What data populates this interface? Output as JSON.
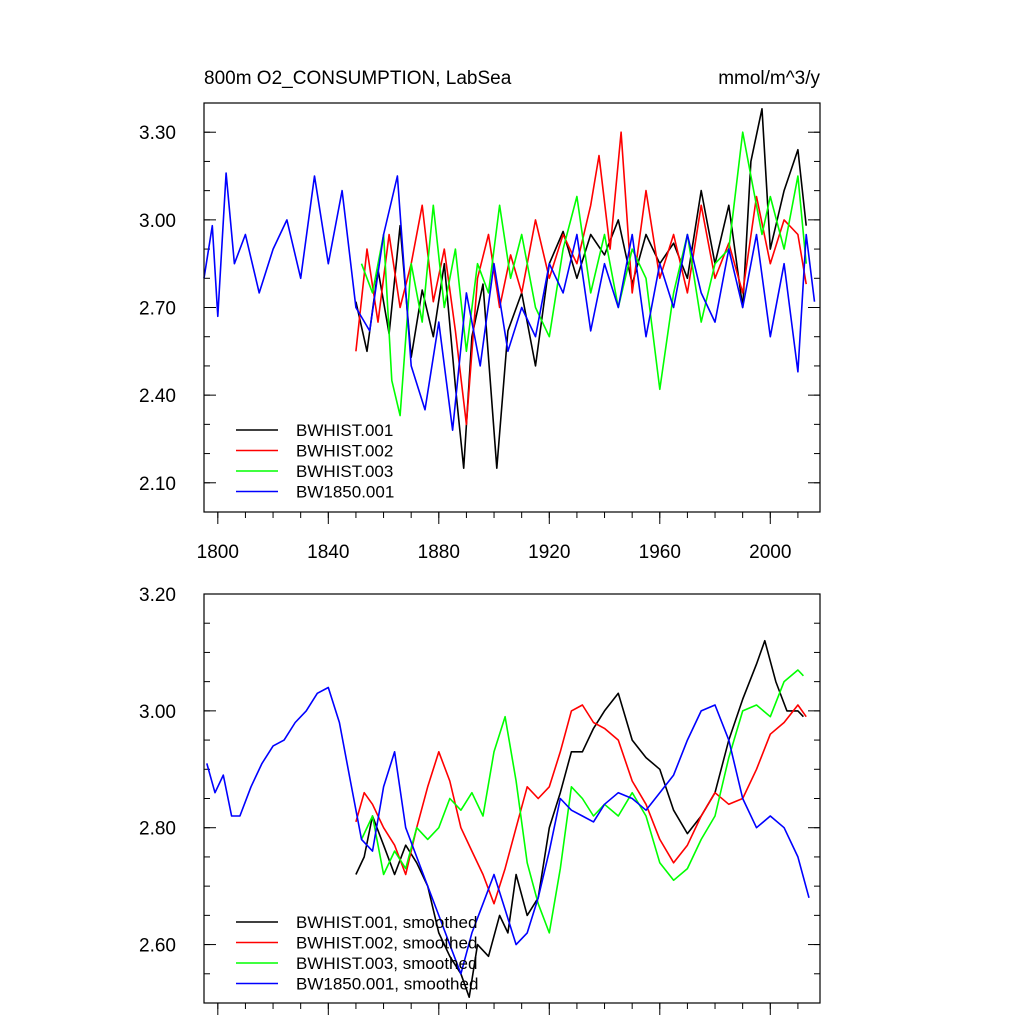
{
  "chart_data": [
    {
      "type": "line",
      "title": "800m O2_CONSUMPTION, LabSea",
      "units": "mmol/m^3/y",
      "xlabel": "",
      "ylabel": "",
      "xlim": [
        1795,
        2018
      ],
      "ylim": [
        2.0,
        3.4
      ],
      "x_ticks": [
        1800,
        1840,
        1880,
        1920,
        1960,
        2000
      ],
      "x_tick_labels": [
        "1800",
        "1840",
        "1880",
        "1920",
        "1960",
        "2000"
      ],
      "y_ticks": [
        2.1,
        2.4,
        2.7,
        3.0,
        3.3
      ],
      "y_tick_labels": [
        "2.10",
        "2.40",
        "2.70",
        "3.00",
        "3.30"
      ],
      "legend": "bottom-left",
      "series": [
        {
          "name": "BWHIST.001",
          "color": "#000000",
          "x": [
            1850,
            1854,
            1858,
            1862,
            1866,
            1870,
            1874,
            1878,
            1882,
            1886,
            1889,
            1892,
            1896,
            1901,
            1905,
            1910,
            1915,
            1920,
            1925,
            1930,
            1935,
            1940,
            1945,
            1950,
            1955,
            1960,
            1965,
            1970,
            1975,
            1980,
            1985,
            1990,
            1993,
            1997,
            2000,
            2005,
            2010,
            2013
          ],
          "y": [
            2.72,
            2.55,
            2.83,
            2.61,
            2.98,
            2.53,
            2.76,
            2.6,
            2.85,
            2.43,
            2.15,
            2.6,
            2.78,
            2.15,
            2.62,
            2.75,
            2.5,
            2.85,
            2.96,
            2.8,
            2.95,
            2.88,
            3.0,
            2.78,
            2.95,
            2.85,
            2.92,
            2.8,
            3.1,
            2.85,
            3.05,
            2.7,
            3.2,
            3.38,
            2.9,
            3.1,
            3.24,
            2.98
          ]
        },
        {
          "name": "BWHIST.002",
          "color": "#ff0000",
          "x": [
            1850,
            1854,
            1858,
            1862,
            1866,
            1870,
            1874,
            1878,
            1882,
            1886,
            1890,
            1894,
            1898,
            1902,
            1906,
            1910,
            1915,
            1920,
            1925,
            1930,
            1935,
            1938,
            1942,
            1946,
            1950,
            1955,
            1960,
            1965,
            1970,
            1975,
            1980,
            1985,
            1990,
            1995,
            2000,
            2005,
            2010,
            2013
          ],
          "y": [
            2.55,
            2.9,
            2.65,
            2.95,
            2.7,
            2.85,
            3.05,
            2.72,
            2.9,
            2.62,
            2.3,
            2.8,
            2.95,
            2.7,
            2.88,
            2.75,
            3.0,
            2.8,
            2.95,
            2.85,
            3.05,
            3.22,
            2.9,
            3.3,
            2.75,
            3.1,
            2.8,
            2.95,
            2.75,
            3.05,
            2.8,
            2.92,
            2.75,
            3.08,
            2.85,
            3.0,
            2.95,
            2.78
          ]
        },
        {
          "name": "BWHIST.003",
          "color": "#00ff00",
          "x": [
            1852,
            1856,
            1860,
            1863,
            1866,
            1870,
            1874,
            1878,
            1882,
            1886,
            1890,
            1894,
            1898,
            1902,
            1906,
            1910,
            1915,
            1920,
            1925,
            1930,
            1935,
            1940,
            1945,
            1950,
            1955,
            1960,
            1965,
            1970,
            1975,
            1980,
            1985,
            1990,
            1993,
            1997,
            2000,
            2005,
            2010,
            2013
          ],
          "y": [
            2.85,
            2.75,
            2.95,
            2.45,
            2.33,
            2.85,
            2.65,
            3.05,
            2.7,
            2.9,
            2.55,
            2.85,
            2.75,
            3.05,
            2.8,
            2.95,
            2.7,
            2.6,
            2.9,
            3.08,
            2.75,
            2.95,
            2.7,
            2.9,
            2.8,
            2.42,
            2.75,
            2.95,
            2.65,
            2.85,
            2.9,
            3.3,
            3.15,
            2.95,
            3.08,
            2.9,
            3.15,
            2.85
          ]
        },
        {
          "name": "BW1850.001",
          "color": "#0000ff",
          "x": [
            1795,
            1798,
            1800,
            1803,
            1806,
            1810,
            1815,
            1820,
            1825,
            1830,
            1835,
            1840,
            1845,
            1850,
            1855,
            1860,
            1865,
            1870,
            1875,
            1880,
            1885,
            1890,
            1895,
            1900,
            1905,
            1910,
            1915,
            1920,
            1925,
            1930,
            1935,
            1940,
            1945,
            1950,
            1955,
            1960,
            1965,
            1970,
            1975,
            1980,
            1985,
            1990,
            1995,
            2000,
            2005,
            2010,
            2013,
            2016
          ],
          "y": [
            2.8,
            2.98,
            2.67,
            3.16,
            2.85,
            2.95,
            2.75,
            2.9,
            3.0,
            2.8,
            3.15,
            2.85,
            3.1,
            2.7,
            2.62,
            2.95,
            3.15,
            2.5,
            2.35,
            2.65,
            2.28,
            2.75,
            2.5,
            2.85,
            2.55,
            2.7,
            2.6,
            2.85,
            2.75,
            2.95,
            2.62,
            2.85,
            2.7,
            2.95,
            2.6,
            2.85,
            2.7,
            2.95,
            2.75,
            2.65,
            2.9,
            2.7,
            2.95,
            2.6,
            2.85,
            2.48,
            2.95,
            2.72
          ]
        }
      ]
    },
    {
      "type": "line",
      "title": "",
      "xlabel": "",
      "ylabel": "",
      "xlim": [
        1795,
        2018
      ],
      "ylim": [
        2.5,
        3.2
      ],
      "x_ticks": [
        1800,
        1840,
        1880,
        1920,
        1960,
        2000
      ],
      "y_ticks": [
        2.6,
        2.8,
        3.0,
        3.2
      ],
      "y_tick_labels": [
        "2.60",
        "2.80",
        "3.00",
        "3.20"
      ],
      "legend": "bottom-left",
      "series": [
        {
          "name": "BWHIST.001, smoothed",
          "color": "#000000",
          "x": [
            1850,
            1853,
            1856,
            1860,
            1864,
            1868,
            1872,
            1876,
            1880,
            1884,
            1888,
            1891,
            1894,
            1898,
            1902,
            1905,
            1908,
            1912,
            1916,
            1920,
            1924,
            1928,
            1932,
            1936,
            1940,
            1945,
            1950,
            1955,
            1960,
            1965,
            1970,
            1975,
            1980,
            1985,
            1990,
            1995,
            1998,
            2002,
            2006,
            2010,
            2012
          ],
          "y": [
            2.72,
            2.75,
            2.82,
            2.77,
            2.72,
            2.77,
            2.74,
            2.7,
            2.62,
            2.58,
            2.55,
            2.51,
            2.6,
            2.58,
            2.65,
            2.62,
            2.72,
            2.65,
            2.68,
            2.8,
            2.86,
            2.93,
            2.93,
            2.97,
            3.0,
            3.03,
            2.95,
            2.92,
            2.9,
            2.83,
            2.79,
            2.82,
            2.86,
            2.95,
            3.02,
            3.08,
            3.12,
            3.05,
            3.0,
            3.0,
            2.99
          ]
        },
        {
          "name": "BWHIST.002, smoothed",
          "color": "#ff0000",
          "x": [
            1850,
            1853,
            1856,
            1860,
            1864,
            1868,
            1872,
            1876,
            1880,
            1884,
            1888,
            1892,
            1896,
            1900,
            1904,
            1908,
            1912,
            1916,
            1920,
            1924,
            1928,
            1932,
            1936,
            1940,
            1945,
            1950,
            1955,
            1960,
            1965,
            1970,
            1975,
            1980,
            1985,
            1990,
            1995,
            2000,
            2005,
            2010,
            2013
          ],
          "y": [
            2.81,
            2.86,
            2.84,
            2.8,
            2.77,
            2.72,
            2.8,
            2.87,
            2.93,
            2.88,
            2.8,
            2.76,
            2.72,
            2.67,
            2.73,
            2.8,
            2.87,
            2.85,
            2.87,
            2.93,
            3.0,
            3.01,
            2.98,
            2.97,
            2.95,
            2.88,
            2.84,
            2.78,
            2.74,
            2.77,
            2.82,
            2.86,
            2.84,
            2.85,
            2.9,
            2.96,
            2.98,
            3.01,
            2.99
          ]
        },
        {
          "name": "BWHIST.003, smoothed",
          "color": "#00ff00",
          "x": [
            1852,
            1856,
            1860,
            1864,
            1868,
            1872,
            1876,
            1880,
            1884,
            1888,
            1892,
            1896,
            1900,
            1904,
            1908,
            1912,
            1916,
            1920,
            1924,
            1928,
            1932,
            1936,
            1940,
            1945,
            1950,
            1955,
            1960,
            1965,
            1970,
            1975,
            1980,
            1985,
            1990,
            1995,
            2000,
            2005,
            2010,
            2012
          ],
          "y": [
            2.78,
            2.82,
            2.72,
            2.76,
            2.73,
            2.8,
            2.78,
            2.8,
            2.85,
            2.83,
            2.86,
            2.82,
            2.93,
            2.99,
            2.88,
            2.74,
            2.67,
            2.62,
            2.73,
            2.87,
            2.85,
            2.82,
            2.84,
            2.82,
            2.86,
            2.82,
            2.74,
            2.71,
            2.73,
            2.78,
            2.82,
            2.92,
            3.0,
            3.01,
            2.99,
            3.05,
            3.07,
            3.06
          ]
        },
        {
          "name": "BW1850.001, smoothed",
          "color": "#0000ff",
          "x": [
            1796,
            1799,
            1802,
            1805,
            1808,
            1812,
            1816,
            1820,
            1824,
            1828,
            1832,
            1836,
            1840,
            1844,
            1848,
            1852,
            1856,
            1860,
            1864,
            1868,
            1872,
            1876,
            1880,
            1884,
            1888,
            1892,
            1896,
            1900,
            1904,
            1908,
            1912,
            1916,
            1920,
            1924,
            1928,
            1932,
            1936,
            1940,
            1945,
            1950,
            1955,
            1960,
            1965,
            1970,
            1975,
            1980,
            1985,
            1990,
            1995,
            2000,
            2005,
            2010,
            2014
          ],
          "y": [
            2.91,
            2.86,
            2.89,
            2.82,
            2.82,
            2.87,
            2.91,
            2.94,
            2.95,
            2.98,
            3.0,
            3.03,
            3.04,
            2.98,
            2.88,
            2.78,
            2.76,
            2.87,
            2.93,
            2.8,
            2.75,
            2.7,
            2.65,
            2.6,
            2.55,
            2.62,
            2.67,
            2.72,
            2.66,
            2.6,
            2.62,
            2.68,
            2.76,
            2.85,
            2.83,
            2.82,
            2.81,
            2.84,
            2.86,
            2.85,
            2.83,
            2.86,
            2.89,
            2.95,
            3.0,
            3.01,
            2.95,
            2.85,
            2.8,
            2.82,
            2.8,
            2.75,
            2.68
          ]
        }
      ]
    }
  ]
}
